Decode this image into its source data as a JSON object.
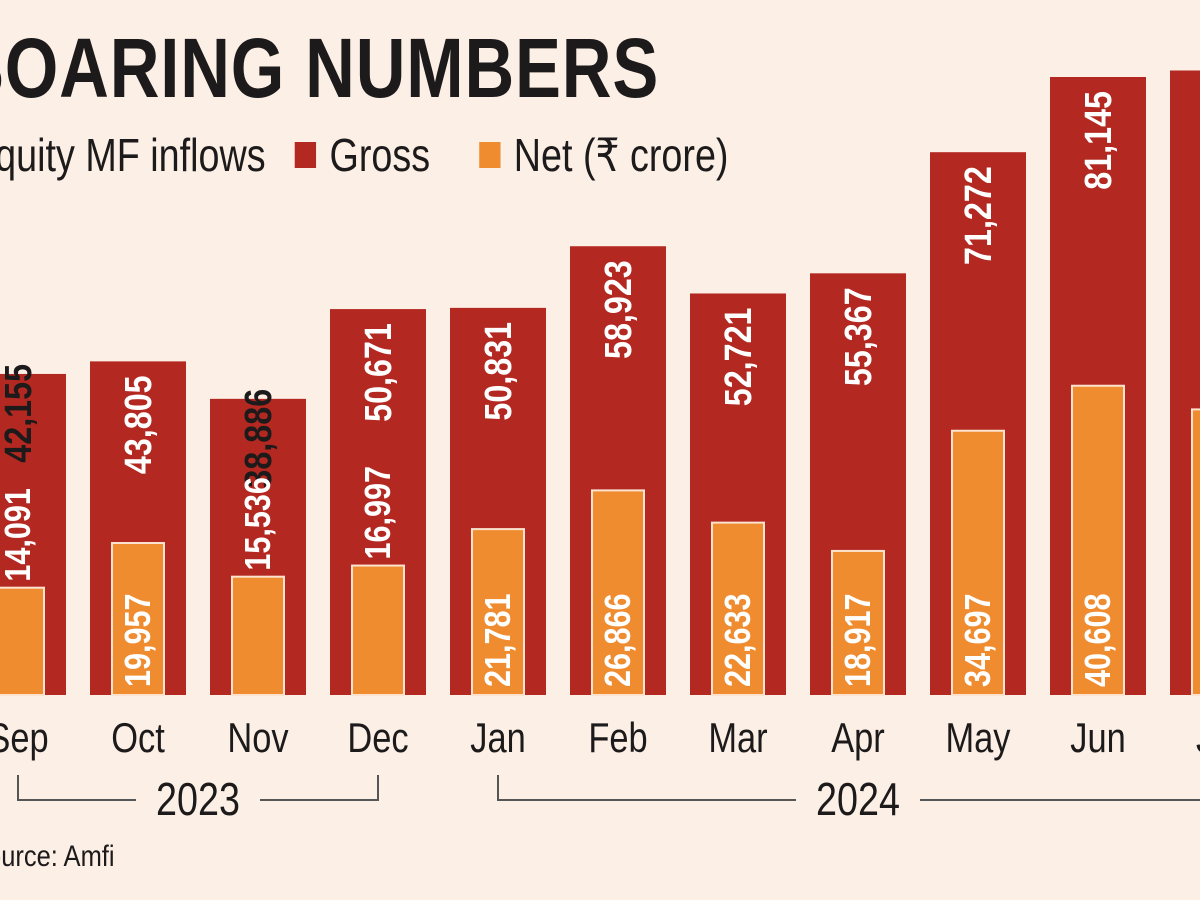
{
  "chart_data": {
    "type": "bar",
    "title": "SOARING NUMBERS",
    "subtitle": "Equity MF inflows",
    "legend": [
      {
        "name": "Gross",
        "color": "#b32820"
      },
      {
        "name": "Net (₹ crore)",
        "color": "#f08c30"
      }
    ],
    "legend_position": "top-left",
    "categories": [
      "Sep",
      "Oct",
      "Nov",
      "Dec",
      "Jan",
      "Feb",
      "Mar",
      "Apr",
      "May",
      "Jun",
      "Jul"
    ],
    "year_groups": [
      {
        "label": "2023",
        "categories": [
          "Sep",
          "Oct",
          "Nov",
          "Dec"
        ]
      },
      {
        "label": "2024",
        "categories": [
          "Jan",
          "Feb",
          "Mar",
          "Apr",
          "May",
          "Jun",
          "Jul"
        ]
      }
    ],
    "series": [
      {
        "name": "Gross",
        "values": [
          42155,
          43805,
          38886,
          50671,
          50831,
          58923,
          52721,
          55367,
          71272,
          81145,
          null
        ],
        "labels": [
          "42,155",
          "43,805",
          "38,886",
          "50,671",
          "50,831",
          "58,923",
          "52,721",
          "55,367",
          "71,272",
          "81,145",
          ""
        ]
      },
      {
        "name": "Net",
        "values": [
          14091,
          19957,
          15536,
          16997,
          21781,
          26866,
          22633,
          18917,
          34697,
          40608,
          null
        ],
        "labels": [
          "14,091",
          "19,957",
          "15,536",
          "16,997",
          "21,781",
          "26,866",
          "22,633",
          "18,917",
          "34,697",
          "40,608",
          ""
        ]
      }
    ],
    "xlabel": "",
    "ylabel": "₹ crore",
    "ylim": [
      0,
      84000
    ],
    "grid": false,
    "source": "Source: Amfi"
  },
  "header": {
    "title": "SOARING NUMBERS",
    "legend_prefix": "Equity MF inflows",
    "legend_gross": "Gross",
    "legend_net": "Net (₹ crore)"
  },
  "footer": {
    "source": "Source: Amfi"
  }
}
